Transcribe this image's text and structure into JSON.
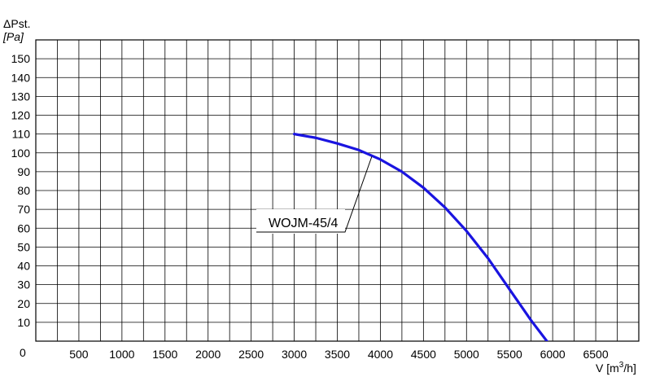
{
  "chart_data": {
    "type": "line",
    "ylabel_line1": "ΔPst.",
    "ylabel_line2": "[Pa]",
    "xlabel_prefix": "V [m",
    "xlabel_sup": "3",
    "xlabel_suffix": "/h]",
    "origin_label": "0",
    "xlim": [
      0,
      7000
    ],
    "ylim": [
      0,
      160
    ],
    "x_grid_step": 250,
    "y_grid_step": 10,
    "grid": true,
    "x_ticks": [
      500,
      1000,
      1500,
      2000,
      2500,
      3000,
      3500,
      4000,
      4500,
      5000,
      5500,
      6000,
      6500
    ],
    "x_tick_labels": [
      "500",
      "1000",
      "1500",
      "2000",
      "2500",
      "3000",
      "3500",
      "4000",
      "4500",
      "5000",
      "5500",
      "6000",
      "6500"
    ],
    "y_ticks": [
      10,
      20,
      30,
      40,
      50,
      60,
      70,
      80,
      90,
      100,
      110,
      120,
      130,
      140,
      150
    ],
    "y_tick_labels": [
      "10",
      "20",
      "30",
      "40",
      "50",
      "60",
      "70",
      "80",
      "90",
      "100",
      "110",
      "120",
      "130",
      "140",
      "150"
    ],
    "series": [
      {
        "name": "WOJM-45/4",
        "color": "#1a14e0",
        "x": [
          3000,
          3250,
          3500,
          3750,
          4000,
          4250,
          4500,
          4750,
          5000,
          5250,
          5500,
          5750,
          6000,
          6050
        ],
        "y": [
          110,
          108,
          105,
          101.5,
          96.5,
          90,
          81.5,
          71,
          58.5,
          44,
          27.5,
          11,
          -4,
          -7
        ]
      }
    ],
    "annotation": {
      "text": "WOJM-45/4",
      "points_to_x": 3900,
      "points_to_y": 98
    }
  }
}
